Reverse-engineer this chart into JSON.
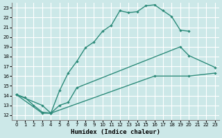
{
  "background_color": "#cce8e8",
  "grid_color": "#ffffff",
  "line_color": "#2d8b7a",
  "xlabel": "Humidex (Indice chaleur)",
  "xlim": [
    -0.5,
    23.5
  ],
  "ylim": [
    11.5,
    23.5
  ],
  "xticks": [
    0,
    1,
    2,
    3,
    4,
    5,
    6,
    7,
    8,
    9,
    10,
    11,
    12,
    13,
    14,
    15,
    16,
    17,
    18,
    19,
    20,
    21,
    22,
    23
  ],
  "yticks": [
    12,
    13,
    14,
    15,
    16,
    17,
    18,
    19,
    20,
    21,
    22,
    23
  ],
  "curve1_x": [
    0,
    1,
    2,
    3,
    4,
    5,
    6,
    7,
    8,
    9,
    10,
    11,
    12,
    13,
    14,
    15,
    16,
    17,
    18,
    19,
    20
  ],
  "curve1_y": [
    14.1,
    13.8,
    13.0,
    12.3,
    12.2,
    14.5,
    16.3,
    17.5,
    18.9,
    19.5,
    20.6,
    21.2,
    22.7,
    22.5,
    22.6,
    23.2,
    23.3,
    22.7,
    22.1,
    20.7,
    20.6
  ],
  "curve2_x": [
    0,
    3,
    4,
    5,
    6,
    7,
    19,
    20,
    23
  ],
  "curve2_y": [
    14.1,
    13.0,
    12.2,
    13.0,
    13.3,
    14.8,
    19.0,
    18.1,
    16.9
  ],
  "curve3_x": [
    0,
    3,
    4,
    16,
    20,
    23
  ],
  "curve3_y": [
    14.1,
    12.2,
    12.2,
    16.0,
    16.0,
    16.3
  ]
}
